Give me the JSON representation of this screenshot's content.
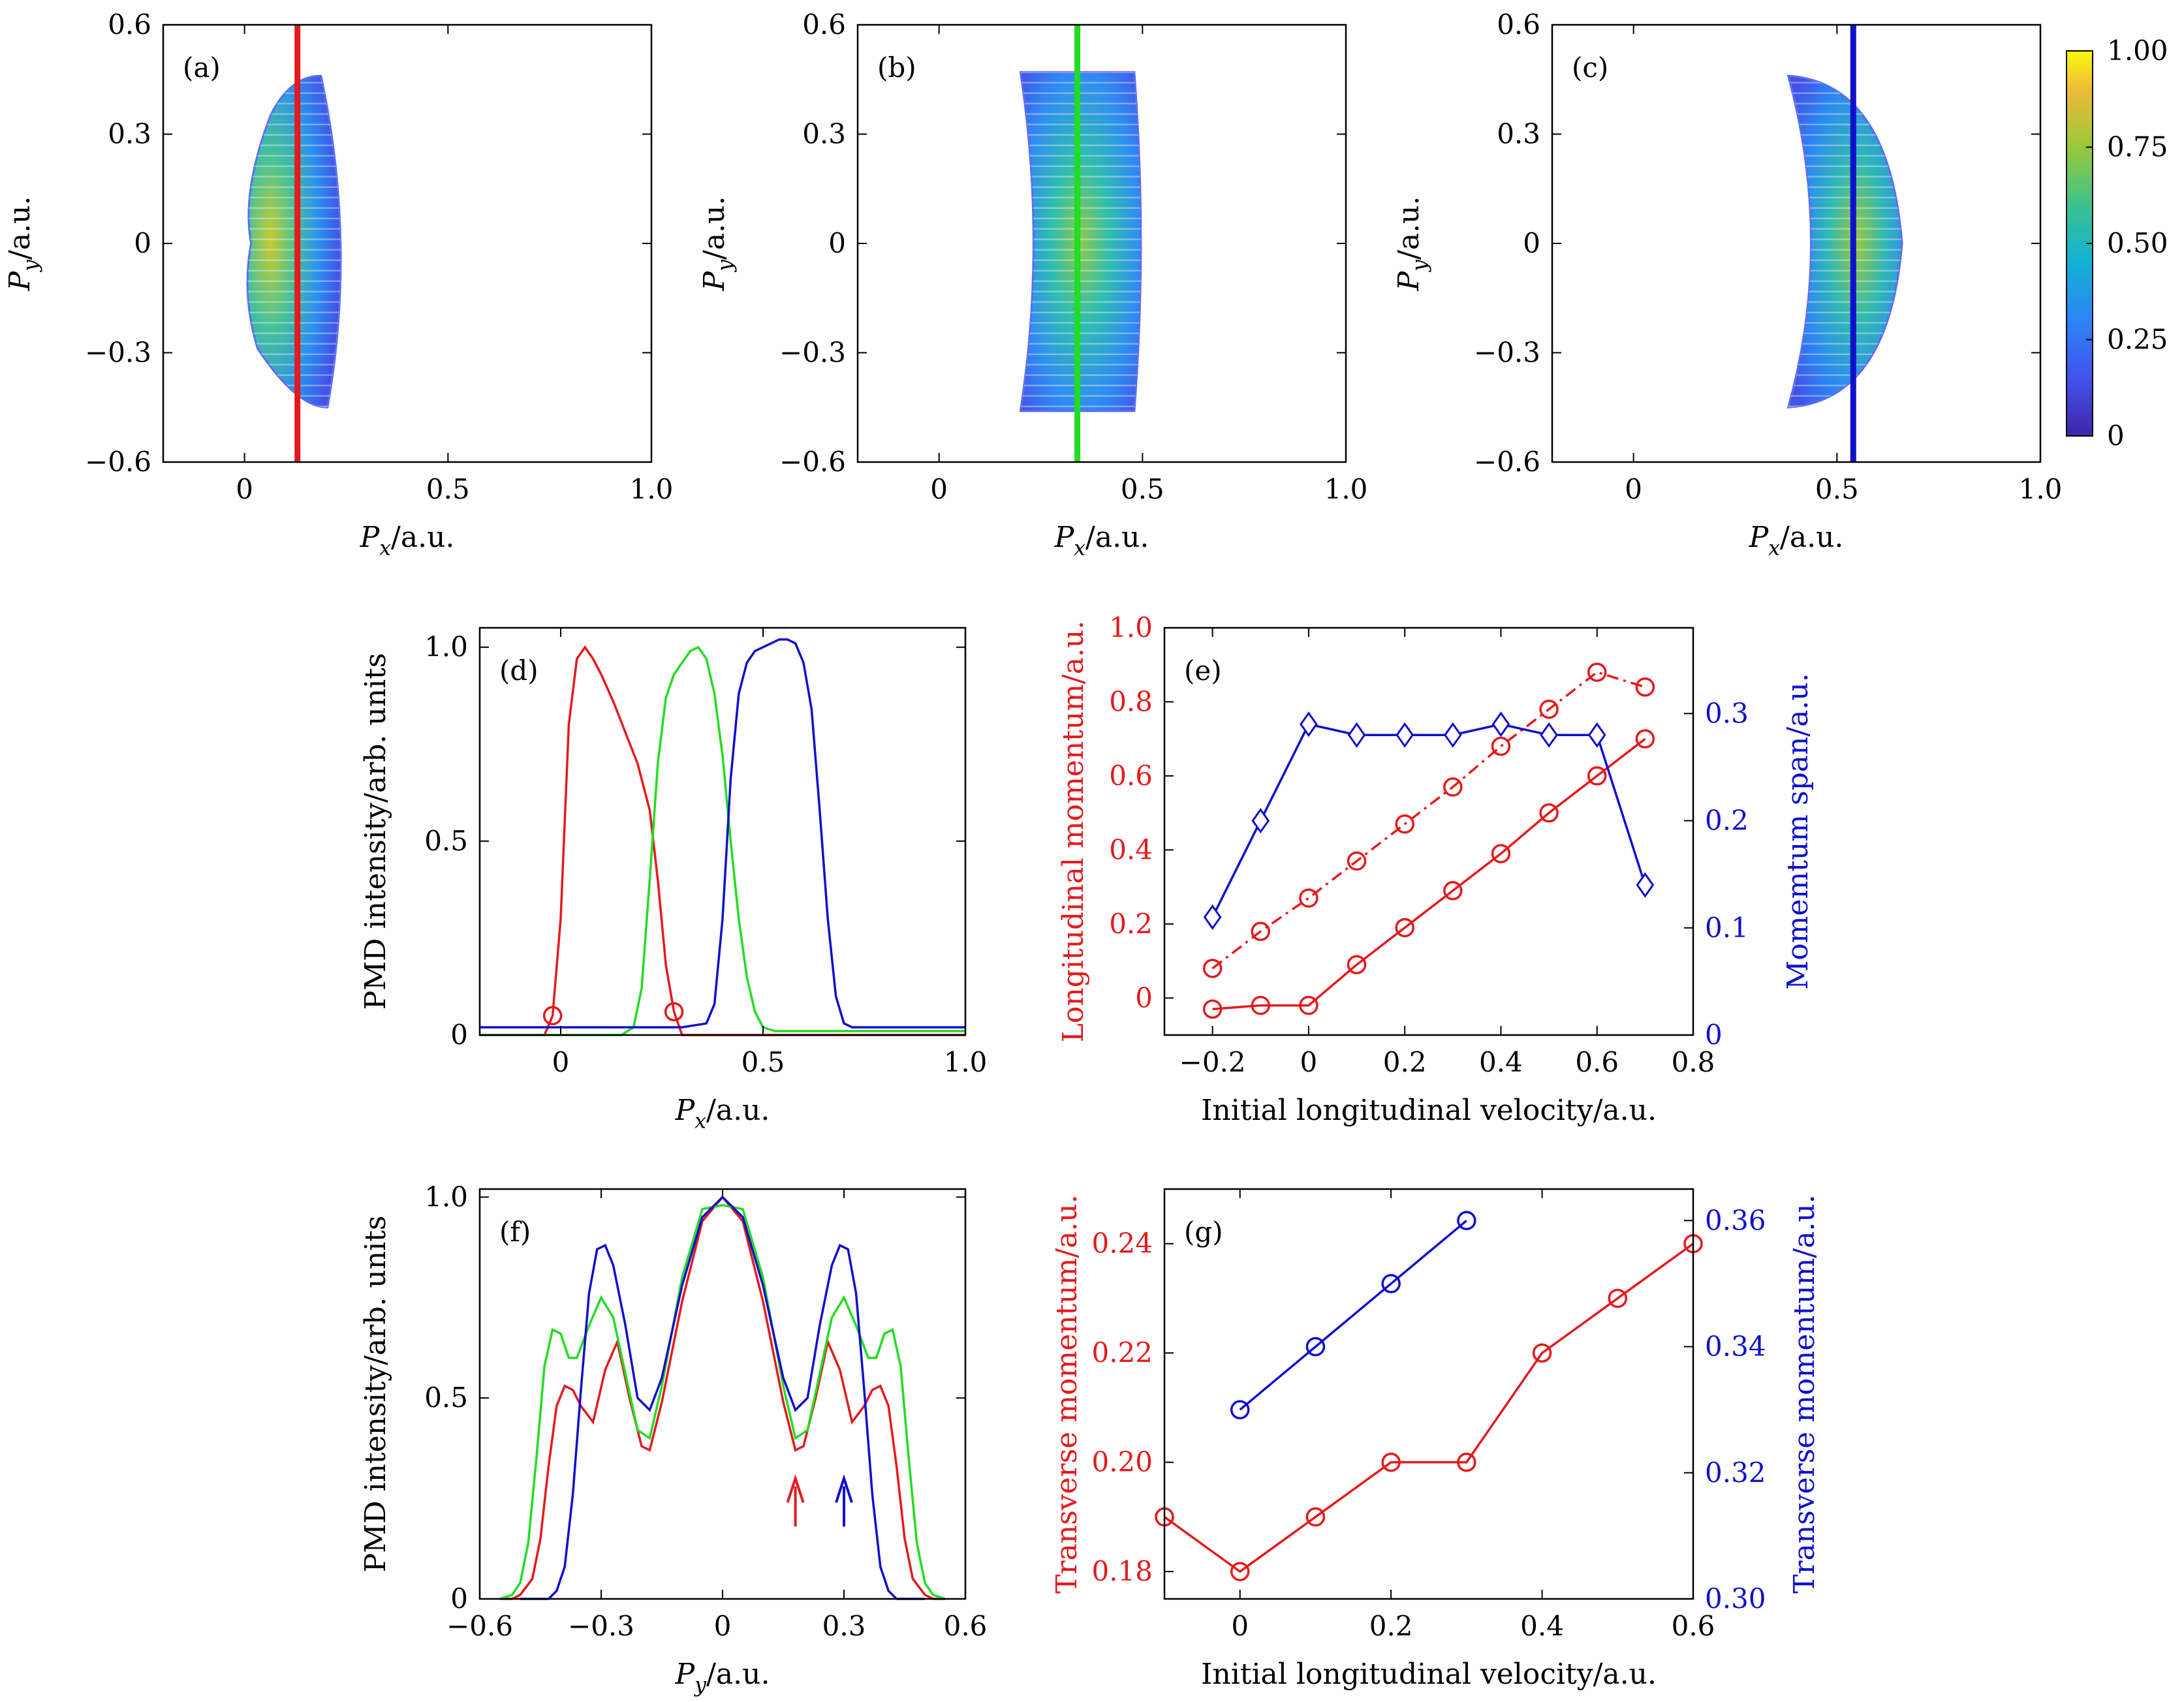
{
  "colors": {
    "red": "#e41a1c",
    "green": "#22dd22",
    "blue": "#1010cc",
    "frame": "#000000"
  },
  "colorbar": {
    "ticks": [
      "1.00",
      "0.75",
      "0.50",
      "0.25",
      "0"
    ],
    "colormap": "parula"
  },
  "chart_data": [
    {
      "panel": "(a)",
      "type": "heatmap",
      "xlabel": "P_x/a.u.",
      "ylabel": "P_y/a.u.",
      "xlim": [
        -0.2,
        1.0
      ],
      "ylim": [
        -0.6,
        0.6
      ],
      "xticks": [
        "0",
        "0.5",
        "1.0"
      ],
      "yticks": [
        "0.6",
        "0.3",
        "0",
        "−0.3",
        "−0.6"
      ],
      "cut_line": {
        "x": 0.13,
        "color": "red"
      },
      "region": {
        "left_edge": 0.0,
        "right_edge": 0.22,
        "top": 0.46,
        "bottom": -0.45
      },
      "colorbar_range": [
        0,
        1.0
      ]
    },
    {
      "panel": "(b)",
      "type": "heatmap",
      "xlabel": "P_x/a.u.",
      "ylabel": "P_y/a.u.",
      "xlim": [
        -0.2,
        1.0
      ],
      "ylim": [
        -0.6,
        0.6
      ],
      "xticks": [
        "0",
        "0.5",
        "1.0"
      ],
      "yticks": [
        "0.6",
        "0.3",
        "0",
        "−0.3",
        "−0.6"
      ],
      "cut_line": {
        "x": 0.34,
        "color": "green"
      },
      "region": {
        "left_edge": 0.2,
        "right_edge": 0.48,
        "top": 0.47,
        "bottom": -0.46
      },
      "colorbar_range": [
        0,
        1.0
      ]
    },
    {
      "panel": "(c)",
      "type": "heatmap",
      "xlabel": "P_x/a.u.",
      "ylabel": "P_y/a.u.",
      "xlim": [
        -0.2,
        1.0
      ],
      "ylim": [
        -0.6,
        0.6
      ],
      "xticks": [
        "0",
        "0.5",
        "1.0"
      ],
      "yticks": [
        "0.6",
        "0.3",
        "0",
        "−0.3",
        "−0.6"
      ],
      "cut_line": {
        "x": 0.54,
        "color": "blue"
      },
      "region": {
        "left_edge": 0.38,
        "right_edge": 0.66,
        "top": 0.46,
        "bottom": -0.45
      },
      "colorbar_range": [
        0,
        1.0
      ]
    },
    {
      "panel": "(d)",
      "type": "line",
      "xlabel": "P_x/a.u.",
      "ylabel": "PMD intensity/arb. units",
      "xlim": [
        -0.2,
        1.0
      ],
      "ylim": [
        0,
        1.05
      ],
      "xticks": [
        "0",
        "0.5",
        "1.0"
      ],
      "yticks": [
        "1.0",
        "0.5",
        "0"
      ],
      "series": [
        {
          "color": "red",
          "x": [
            -0.2,
            -0.04,
            -0.02,
            0.0,
            0.02,
            0.04,
            0.06,
            0.08,
            0.1,
            0.13,
            0.16,
            0.19,
            0.22,
            0.24,
            0.26,
            0.28,
            0.3,
            0.5,
            1.0
          ],
          "y": [
            0,
            0,
            0.05,
            0.3,
            0.8,
            0.97,
            1.0,
            0.97,
            0.93,
            0.86,
            0.78,
            0.7,
            0.58,
            0.4,
            0.18,
            0.06,
            0,
            0,
            0
          ]
        },
        {
          "color": "green",
          "x": [
            -0.2,
            0.15,
            0.18,
            0.2,
            0.22,
            0.24,
            0.26,
            0.28,
            0.3,
            0.32,
            0.34,
            0.36,
            0.38,
            0.4,
            0.42,
            0.44,
            0.46,
            0.48,
            0.5,
            0.53,
            1.0
          ],
          "y": [
            0,
            0,
            0.02,
            0.12,
            0.4,
            0.7,
            0.87,
            0.93,
            0.96,
            0.99,
            1.0,
            0.97,
            0.88,
            0.72,
            0.5,
            0.3,
            0.15,
            0.06,
            0.02,
            0.01,
            0.01
          ]
        },
        {
          "color": "blue",
          "x": [
            -0.2,
            0.3,
            0.36,
            0.38,
            0.4,
            0.42,
            0.44,
            0.46,
            0.48,
            0.5,
            0.52,
            0.54,
            0.56,
            0.58,
            0.6,
            0.62,
            0.64,
            0.66,
            0.68,
            0.7,
            0.72,
            1.0
          ],
          "y": [
            0.02,
            0.02,
            0.03,
            0.08,
            0.3,
            0.66,
            0.88,
            0.96,
            0.99,
            1.0,
            1.01,
            1.02,
            1.02,
            1.01,
            0.96,
            0.84,
            0.58,
            0.3,
            0.1,
            0.03,
            0.02,
            0.02
          ]
        }
      ],
      "markers": [
        {
          "x": -0.02,
          "y": 0.05,
          "color": "red"
        },
        {
          "x": 0.28,
          "y": 0.06,
          "color": "red"
        }
      ]
    },
    {
      "panel": "(e)",
      "type": "line",
      "xlabel": "Initial longitudinal velocity/a.u.",
      "ylabel": "Longitudinal momentum/a.u.",
      "ylabel_right": "Momemtum span/a.u.",
      "xlim": [
        -0.3,
        0.8
      ],
      "ylim": [
        -0.1,
        1.0
      ],
      "ylim_right": [
        0,
        0.38
      ],
      "xticks": [
        "−0.2",
        "0",
        "0.2",
        "0.4",
        "0.6",
        "0.8"
      ],
      "yticks": [
        "1.0",
        "0.8",
        "0.6",
        "0.4",
        "0.2",
        "0"
      ],
      "yticks_right": [
        "0.3",
        "0.2",
        "0.1",
        "0"
      ],
      "series": [
        {
          "color": "red",
          "style": "dash-dot",
          "axis": "left",
          "x": [
            -0.2,
            -0.1,
            0,
            0.1,
            0.2,
            0.3,
            0.4,
            0.5,
            0.6,
            0.7
          ],
          "y": [
            0.08,
            0.18,
            0.27,
            0.37,
            0.47,
            0.57,
            0.68,
            0.78,
            0.88,
            0.84
          ]
        },
        {
          "color": "red",
          "style": "solid",
          "axis": "left",
          "x": [
            -0.2,
            -0.1,
            0,
            0.1,
            0.2,
            0.3,
            0.4,
            0.5,
            0.6,
            0.7
          ],
          "y": [
            -0.03,
            -0.02,
            -0.02,
            0.09,
            0.19,
            0.29,
            0.39,
            0.5,
            0.6,
            0.7
          ]
        },
        {
          "color": "blue",
          "style": "solid",
          "axis": "right",
          "marker": "diamond",
          "x": [
            -0.2,
            -0.1,
            0,
            0.1,
            0.2,
            0.3,
            0.4,
            0.5,
            0.6,
            0.7
          ],
          "y": [
            0.11,
            0.2,
            0.29,
            0.28,
            0.28,
            0.28,
            0.29,
            0.28,
            0.28,
            0.14
          ]
        }
      ]
    },
    {
      "panel": "(f)",
      "type": "line",
      "xlabel": "P_y/a.u.",
      "ylabel": "PMD intensity/arb. units",
      "xlim": [
        -0.6,
        0.6
      ],
      "ylim": [
        0,
        1.02
      ],
      "xticks": [
        "−0.6",
        "−0.3",
        "0",
        "0.3",
        "0.6"
      ],
      "yticks": [
        "1.0",
        "0.5",
        "0"
      ],
      "series": [
        {
          "color": "red",
          "x": [
            0,
            0.05,
            0.1,
            0.15,
            0.18,
            0.2,
            0.23,
            0.26,
            0.29,
            0.32,
            0.35,
            0.37,
            0.39,
            0.41,
            0.43,
            0.45,
            0.47,
            0.5,
            0.52,
            0.55
          ],
          "y": [
            1.0,
            0.94,
            0.74,
            0.49,
            0.37,
            0.38,
            0.5,
            0.64,
            0.57,
            0.44,
            0.48,
            0.52,
            0.53,
            0.48,
            0.33,
            0.15,
            0.05,
            0.01,
            0.0,
            0.0
          ]
        },
        {
          "color": "green",
          "x": [
            0,
            0.05,
            0.1,
            0.15,
            0.18,
            0.21,
            0.24,
            0.27,
            0.3,
            0.33,
            0.36,
            0.38,
            0.4,
            0.42,
            0.44,
            0.46,
            0.48,
            0.5,
            0.52,
            0.55
          ],
          "y": [
            0.98,
            0.97,
            0.8,
            0.53,
            0.4,
            0.42,
            0.56,
            0.7,
            0.75,
            0.68,
            0.6,
            0.6,
            0.66,
            0.67,
            0.58,
            0.35,
            0.14,
            0.04,
            0.01,
            0.0
          ]
        },
        {
          "color": "blue",
          "x": [
            0,
            0.05,
            0.1,
            0.15,
            0.18,
            0.21,
            0.24,
            0.27,
            0.29,
            0.31,
            0.33,
            0.35,
            0.37,
            0.39,
            0.41,
            0.43,
            0.45,
            0.5
          ],
          "y": [
            1.0,
            0.95,
            0.78,
            0.55,
            0.47,
            0.5,
            0.68,
            0.83,
            0.88,
            0.87,
            0.76,
            0.52,
            0.26,
            0.08,
            0.02,
            0.0,
            0.0,
            0.0
          ]
        }
      ],
      "arrows": [
        {
          "x": 0.18,
          "color": "red"
        },
        {
          "x": 0.3,
          "color": "blue"
        }
      ]
    },
    {
      "panel": "(g)",
      "type": "line",
      "xlabel": "Initial longitudinal velocity/a.u.",
      "ylabel": "Transverse momentum/a.u.",
      "ylabel_right": "Transverse momentum/a.u.",
      "xlim": [
        -0.1,
        0.6
      ],
      "ylim": [
        0.175,
        0.25
      ],
      "ylim_right": [
        0.3,
        0.365
      ],
      "xticks": [
        "0",
        "0.2",
        "0.4",
        "0.6"
      ],
      "yticks": [
        "0.24",
        "0.22",
        "0.20",
        "0.18"
      ],
      "yticks_right": [
        "0.36",
        "0.34",
        "0.32",
        "0.30"
      ],
      "series": [
        {
          "color": "red",
          "axis": "left",
          "x": [
            -0.1,
            0,
            0.1,
            0.2,
            0.3,
            0.4,
            0.5,
            0.6
          ],
          "y": [
            0.19,
            0.18,
            0.19,
            0.2,
            0.2,
            0.22,
            0.23,
            0.24
          ]
        },
        {
          "color": "blue",
          "axis": "right",
          "x": [
            0,
            0.1,
            0.2,
            0.3
          ],
          "y": [
            0.33,
            0.34,
            0.35,
            0.36
          ]
        }
      ]
    }
  ]
}
